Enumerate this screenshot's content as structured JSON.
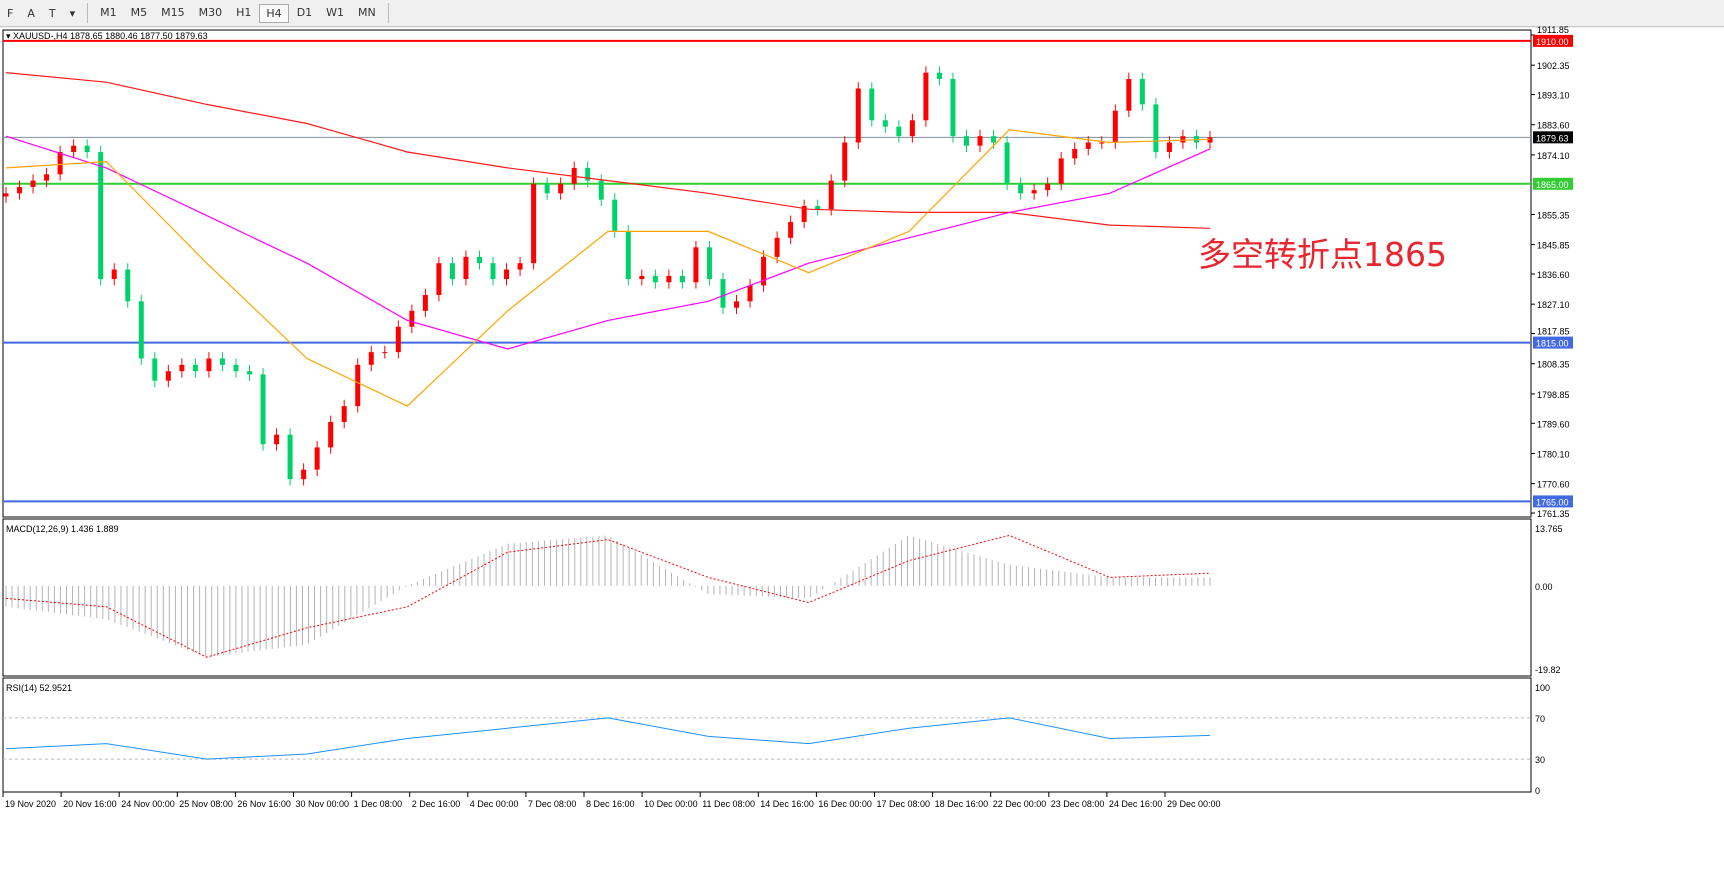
{
  "toolbar": {
    "tools": [
      {
        "icon": "fibo-icon",
        "label": "F"
      },
      {
        "icon": "text-icon",
        "label": "A"
      },
      {
        "icon": "text-label-icon",
        "label": "T"
      },
      {
        "icon": "arrows-icon",
        "label": "▾"
      }
    ],
    "timeframes": [
      "M1",
      "M5",
      "M15",
      "M30",
      "H1",
      "H4",
      "D1",
      "W1",
      "MN"
    ],
    "active_timeframe": "H4"
  },
  "chart_header": "XAUUSD-,H4  1878.65 1880.46 1877.50 1879.63",
  "annotation": "多空转折点1865",
  "colors": {
    "bull": "#ff0000",
    "bear": "#00d26a",
    "ma_slow": "#ff1a1a",
    "ma_mid": "#ff00ff",
    "ma_fast": "#ffa500",
    "macd_hist": "#b4b4b4",
    "macd_signal": "#ff0000",
    "rsi": "#1e90ff"
  },
  "chart_data": [
    {
      "type": "candlestick",
      "symbol": "XAUUSD-",
      "timeframe": "H4",
      "ylim": [
        1761.35,
        1911.85
      ],
      "y_ticks": [
        "1911.85",
        "1902.35",
        "1893.10",
        "1883.60",
        "1874.10",
        "1855.35",
        "1845.85",
        "1836.60",
        "1827.10",
        "1817.85",
        "1808.35",
        "1798.85",
        "1789.60",
        "1780.10",
        "1770.60",
        "1761.35"
      ],
      "x_ticks": [
        "19 Nov 2020",
        "20 Nov 16:00",
        "24 Nov 00:00",
        "25 Nov 08:00",
        "26 Nov 16:00",
        "30 Nov 00:00",
        "1 Dec 08:00",
        "2 Dec 16:00",
        "4 Dec 00:00",
        "7 Dec 08:00",
        "8 Dec 16:00",
        "10 Dec 00:00",
        "11 Dec 08:00",
        "14 Dec 16:00",
        "16 Dec 00:00",
        "17 Dec 08:00",
        "18 Dec 16:00",
        "22 Dec 00:00",
        "23 Dec 08:00",
        "24 Dec 16:00",
        "29 Dec 00:00"
      ],
      "closes": [
        1862,
        1864,
        1866,
        1868,
        1875,
        1877,
        1875,
        1835,
        1838,
        1828,
        1810,
        1803,
        1806,
        1808,
        1806,
        1810,
        1808,
        1806,
        1805,
        1783,
        1786,
        1772,
        1775,
        1782,
        1790,
        1795,
        1808,
        1812,
        1812,
        1820,
        1825,
        1830,
        1840,
        1835,
        1842,
        1840,
        1835,
        1838,
        1840,
        1865,
        1862,
        1865,
        1870,
        1866,
        1860,
        1850,
        1835,
        1836,
        1834,
        1836,
        1834,
        1845,
        1835,
        1826,
        1828,
        1833,
        1842,
        1848,
        1853,
        1858,
        1857,
        1866,
        1878,
        1895,
        1885,
        1883,
        1880,
        1885,
        1900,
        1898,
        1880,
        1877,
        1880,
        1878,
        1865,
        1862,
        1863,
        1865,
        1873,
        1876,
        1878,
        1878,
        1888,
        1898,
        1890,
        1875,
        1878,
        1880,
        1878,
        1879.63
      ],
      "moving_averages": [
        {
          "color_key": "ma_slow",
          "values": [
            1900,
            1897,
            1890,
            1884,
            1875,
            1870,
            1866,
            1862,
            1857,
            1856,
            1856,
            1852,
            1851
          ]
        },
        {
          "color_key": "ma_mid",
          "values": [
            1880,
            1870,
            1855,
            1840,
            1822,
            1813,
            1822,
            1828,
            1840,
            1848,
            1856,
            1862,
            1876
          ]
        },
        {
          "color_key": "ma_fast",
          "values": [
            1870,
            1872,
            1840,
            1810,
            1795,
            1825,
            1850,
            1850,
            1837,
            1850,
            1882,
            1878,
            1879
          ]
        }
      ],
      "levels": [
        {
          "value": 1910.0,
          "label": "1910.00",
          "color": "#ff0000"
        },
        {
          "value": 1865.0,
          "label": "1865.00",
          "color": "#32cd32"
        },
        {
          "value": 1815.0,
          "label": "1815.00",
          "color": "#4169e1"
        },
        {
          "value": 1765.0,
          "label": "1765.00",
          "color": "#4169e1"
        }
      ],
      "current_price": {
        "value": 1879.63,
        "label": "1879.63"
      }
    },
    {
      "type": "bar",
      "name": "MACD(12,26,9) 1.436 1.889",
      "ylim": [
        -19.82,
        13.765
      ],
      "y_ticks": [
        "13.765",
        "0.00",
        "-19.82"
      ],
      "histogram": [
        -5,
        -8,
        -17,
        -14,
        0,
        10,
        12,
        -2,
        -3,
        12,
        5,
        2,
        2
      ],
      "signal": [
        -3,
        -5,
        -17,
        -10,
        -5,
        8,
        11,
        2,
        -4,
        6,
        12,
        2,
        3
      ]
    },
    {
      "type": "line",
      "name": "RSI(14) 52.9521",
      "ylim": [
        0,
        100
      ],
      "y_ticks": [
        "100",
        "70",
        "30",
        "0"
      ],
      "levels": [
        70,
        30
      ],
      "values": [
        40,
        45,
        30,
        35,
        50,
        60,
        70,
        52,
        45,
        60,
        70,
        50,
        53
      ]
    }
  ]
}
